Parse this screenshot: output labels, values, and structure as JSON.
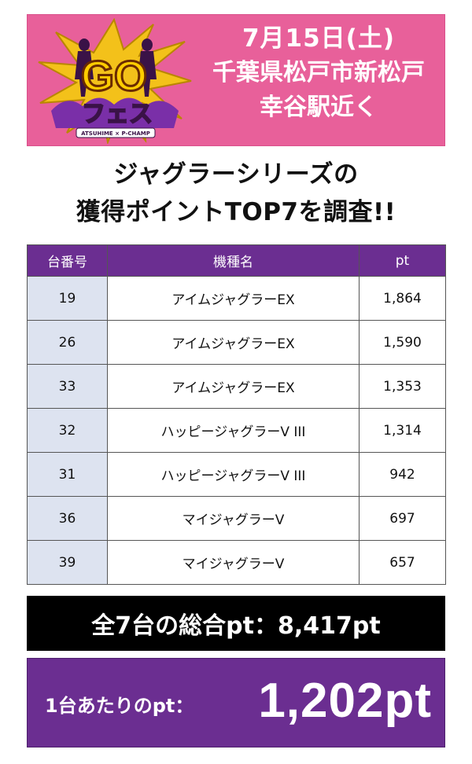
{
  "banner": {
    "logo": {
      "main_text": "GO",
      "sub_text": "フェス",
      "tagline": "ATSUHIME × P-CHAMP"
    },
    "date": "7月15日(土)",
    "place_line1": "千葉県松戸市新松戸",
    "place_line2": "幸谷駅近く"
  },
  "headline": {
    "line1": "ジャグラーシリーズの",
    "line2": "獲得ポイントTOP7を調査!!"
  },
  "table": {
    "headers": [
      "台番号",
      "機種名",
      "pt"
    ],
    "rows": [
      {
        "no": "19",
        "model": "アイムジャグラーEX",
        "pt": "1,864"
      },
      {
        "no": "26",
        "model": "アイムジャグラーEX",
        "pt": "1,590"
      },
      {
        "no": "33",
        "model": "アイムジャグラーEX",
        "pt": "1,353"
      },
      {
        "no": "32",
        "model": "ハッピージャグラーV III",
        "pt": "1,314"
      },
      {
        "no": "31",
        "model": "ハッピージャグラーV III",
        "pt": "942"
      },
      {
        "no": "36",
        "model": "マイジャグラーV",
        "pt": "697"
      },
      {
        "no": "39",
        "model": "マイジャグラーV",
        "pt": "657"
      }
    ]
  },
  "summary": {
    "total_text": "全7台の総合pt：8,417pt",
    "per_label": "1台あたりのpt：",
    "per_value": "1,202pt"
  },
  "colors": {
    "banner": "#e8609a",
    "purple": "#6b2e91",
    "row_no_bg": "#dde3f0",
    "black": "#000000"
  }
}
